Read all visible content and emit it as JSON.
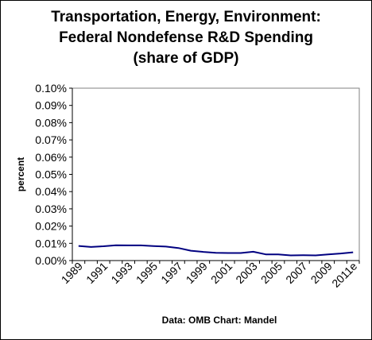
{
  "chart_data": {
    "type": "line",
    "title_lines": [
      "Transportation, Energy, Environment:",
      "Federal Nondefense R&D Spending",
      "(share of GDP)"
    ],
    "ylabel": "percent",
    "xlabel": "",
    "source_note": "Data: OMB  Chart: Mandel",
    "ylim": [
      0,
      0.1
    ],
    "y_ticks": [
      "0.00%",
      "0.01%",
      "0.02%",
      "0.03%",
      "0.04%",
      "0.05%",
      "0.06%",
      "0.07%",
      "0.08%",
      "0.09%",
      "0.10%"
    ],
    "x_tick_labels": [
      "1989",
      "1991",
      "1993",
      "1995",
      "1997",
      "1999",
      "2001",
      "2003",
      "2005",
      "2007",
      "2009",
      "2011e"
    ],
    "x": [
      "1989",
      "1990",
      "1991",
      "1992",
      "1993",
      "1994",
      "1995",
      "1996",
      "1997",
      "1998",
      "1999",
      "2000",
      "2001",
      "2002",
      "2003",
      "2004",
      "2005",
      "2006",
      "2007",
      "2008",
      "2009",
      "2010",
      "2011e"
    ],
    "series": [
      {
        "values": [
          0.0085,
          0.0079,
          0.0083,
          0.0089,
          0.0088,
          0.0088,
          0.0084,
          0.0081,
          0.0073,
          0.0057,
          0.005,
          0.0045,
          0.0044,
          0.0044,
          0.0051,
          0.0036,
          0.0036,
          0.003,
          0.0031,
          0.003,
          0.0036,
          0.0041,
          0.0048
        ],
        "color": "#000080"
      }
    ],
    "grid": false,
    "legend": "none"
  }
}
